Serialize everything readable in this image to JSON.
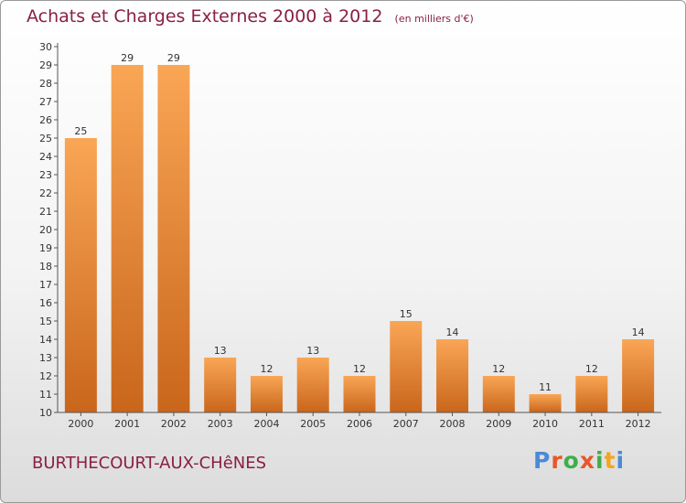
{
  "title": "Achats et Charges Externes 2000 à 2012",
  "unit_note": "(en milliers d'€)",
  "commune": "BURTHECOURT-AUX-CHêNES",
  "logo": {
    "letters": [
      "P",
      "r",
      "o",
      "x",
      "i",
      "t",
      "i"
    ],
    "colors": [
      "#4a8ad8",
      "#e8572a",
      "#3fae49",
      "#e8572a",
      "#3fae49",
      "#f2a51e",
      "#4a8ad8"
    ]
  },
  "colors": {
    "bar_top": "#f9a655",
    "bar_bottom": "#c9661c",
    "title": "#8a2040"
  },
  "chart_data": {
    "type": "bar",
    "title": "Achats et Charges Externes 2000 à 2012",
    "subtitle": "(en milliers d'€)",
    "categories": [
      "2000",
      "2001",
      "2002",
      "2003",
      "2004",
      "2005",
      "2006",
      "2007",
      "2008",
      "2009",
      "2010",
      "2011",
      "2012"
    ],
    "values": [
      25,
      29,
      29,
      13,
      12,
      13,
      12,
      15,
      14,
      12,
      11,
      12,
      14
    ],
    "ylim": [
      10,
      30
    ],
    "yticks": [
      10,
      11,
      12,
      13,
      14,
      15,
      16,
      17,
      18,
      19,
      20,
      21,
      22,
      23,
      24,
      25,
      26,
      27,
      28,
      29,
      30
    ],
    "grid": false,
    "xlabel": "",
    "ylabel": ""
  }
}
